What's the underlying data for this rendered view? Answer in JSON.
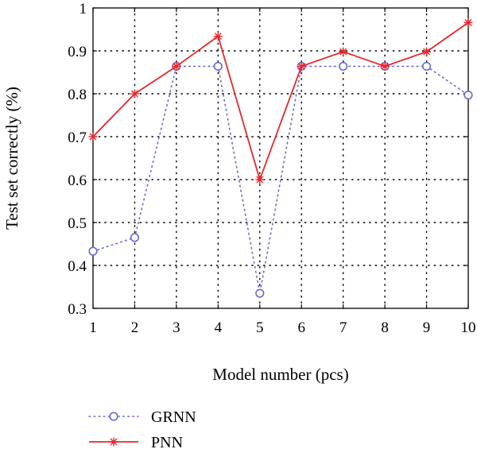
{
  "chart_data": {
    "type": "line",
    "xlabel": "Model number (pcs)",
    "ylabel": "Test set correctly (%)",
    "x": [
      1,
      2,
      3,
      4,
      5,
      6,
      7,
      8,
      9,
      10
    ],
    "xlim": [
      1,
      10
    ],
    "ylim": [
      0.3,
      1.0
    ],
    "x_ticks": [
      "1",
      "2",
      "3",
      "4",
      "5",
      "6",
      "7",
      "8",
      "9",
      "10"
    ],
    "y_ticks": [
      "0.3",
      "0.4",
      "0.5",
      "0.6",
      "0.7",
      "0.8",
      "0.9",
      "1"
    ],
    "grid": true,
    "legend_position": "bottom-left, below plot",
    "series": [
      {
        "name": "GRNN",
        "values": [
          0.433,
          0.465,
          0.864,
          0.864,
          0.335,
          0.864,
          0.864,
          0.864,
          0.864,
          0.797
        ],
        "color": "#6a6ad0",
        "line_style": "dotted",
        "marker": "circle"
      },
      {
        "name": "PNN",
        "values": [
          0.7,
          0.8,
          0.864,
          0.934,
          0.6,
          0.864,
          0.898,
          0.864,
          0.898,
          0.966
        ],
        "color": "#e8262b",
        "line_style": "solid",
        "marker": "asterisk"
      }
    ]
  }
}
